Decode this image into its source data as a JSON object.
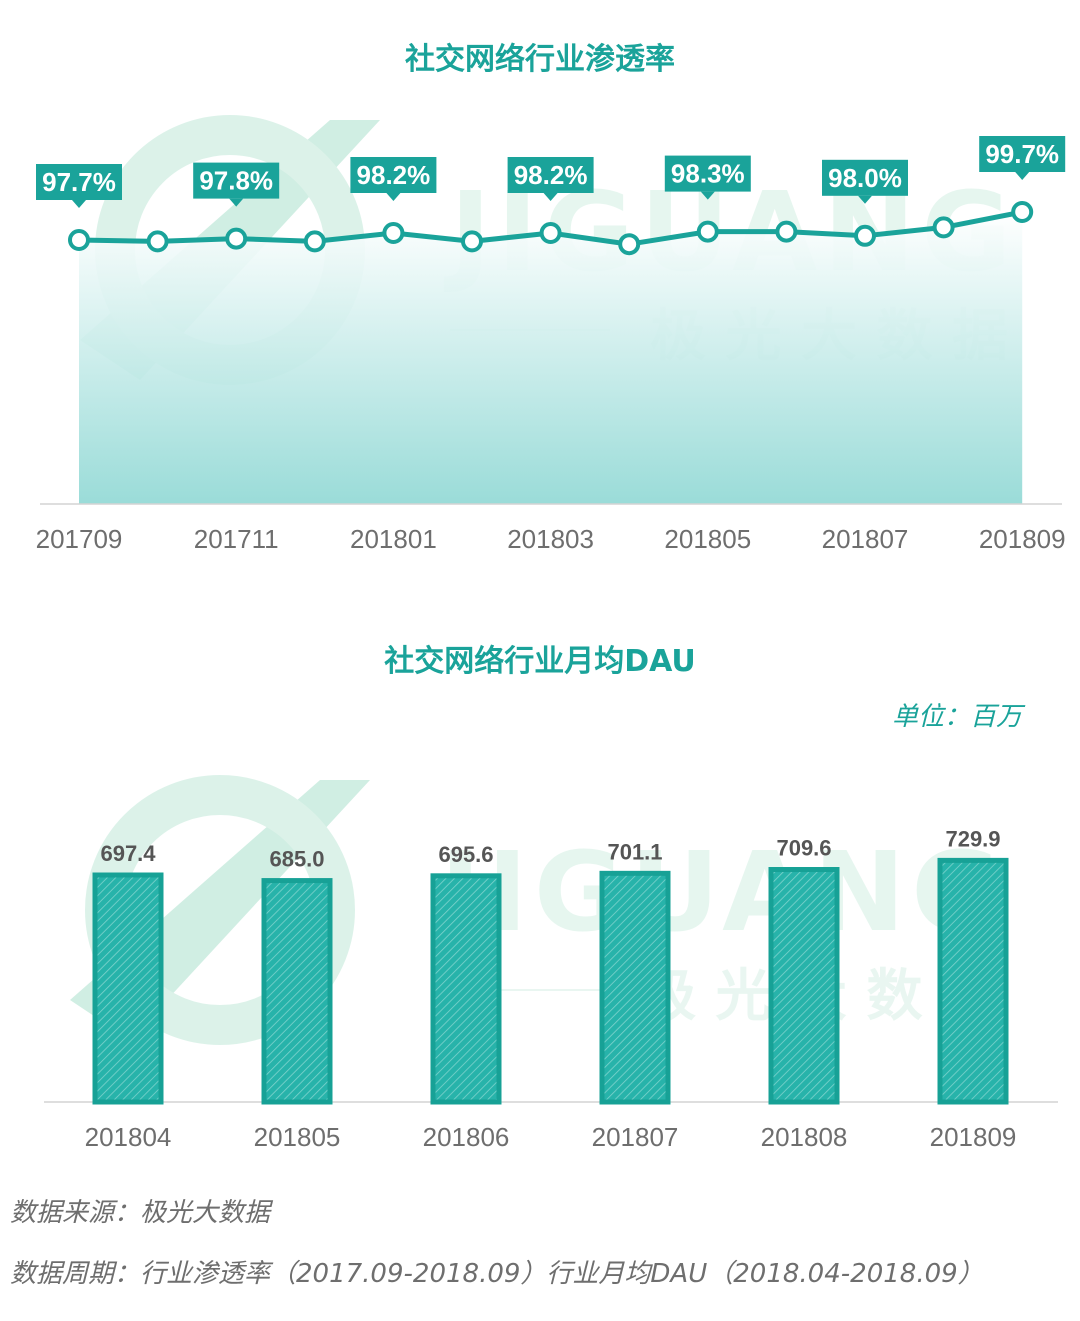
{
  "charts": {
    "line": {
      "title": "社交网络行业渗透率",
      "ticks": [
        "201709",
        "201711",
        "201801",
        "201803",
        "201805",
        "201807",
        "201809"
      ]
    },
    "bar": {
      "title": "社交网络行业月均DAU",
      "unit": "单位：百万"
    }
  },
  "watermark": {
    "brand": "JIGUANG",
    "subtitle": "极 光 大 数 据"
  },
  "footer": {
    "source": "数据来源：极光大数据",
    "period": "数据周期：行业渗透率（2017.09-2018.09）行业月均DAU（2018.04-2018.09）"
  },
  "colors": {
    "accent": "#1aa39a",
    "bar_fill": "#27b3aa",
    "label_box": "#1aa39a",
    "area_top": "#ffffff",
    "area_bottom": "#8fd8d4"
  },
  "chart_data": [
    {
      "type": "line",
      "title": "社交网络行业渗透率",
      "x": [
        "201709",
        "201710",
        "201711",
        "201712",
        "201801",
        "201802",
        "201803",
        "201804",
        "201805",
        "201806",
        "201807",
        "201808",
        "201809"
      ],
      "values": [
        97.7,
        97.6,
        97.8,
        97.6,
        98.2,
        97.6,
        98.2,
        97.4,
        98.3,
        98.3,
        98.0,
        98.6,
        99.7
      ],
      "labels": {
        "201709": "97.7%",
        "201711": "97.8%",
        "201801": "98.2%",
        "201803": "98.2%",
        "201805": "98.3%",
        "201807": "98.0%",
        "201809": "99.7%"
      },
      "xlabel": "",
      "ylabel": "",
      "area_fill": true,
      "grid": false
    },
    {
      "type": "bar",
      "title": "社交网络行业月均DAU",
      "categories": [
        "201804",
        "201805",
        "201806",
        "201807",
        "201808",
        "201809"
      ],
      "values": [
        697.4,
        685.0,
        695.6,
        701.1,
        709.6,
        729.9
      ],
      "value_labels": [
        "697.4",
        "685.0",
        "695.6",
        "701.1",
        "709.6",
        "729.9"
      ],
      "unit": "单位：百万",
      "xlabel": "",
      "ylabel": "",
      "grid": false
    }
  ]
}
